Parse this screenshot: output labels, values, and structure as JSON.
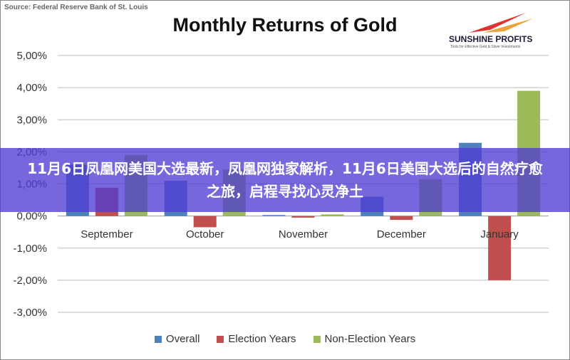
{
  "source": "Source: Federal Reserve Bank of St. Louis",
  "logo": {
    "name": "SUNSHINE PROFITS",
    "tagline": "Tools for Effective Gold & Silver Investments"
  },
  "overlay_headline": "11月6日凤凰网美国大选最新，凤凰网独家解析，11月6日美国大选后的自然疗愈之旅，启程寻找心灵净土",
  "chart_data": {
    "type": "bar",
    "title": "Monthly Returns of Gold",
    "categories": [
      "September",
      "October",
      "November",
      "December",
      "January"
    ],
    "series": [
      {
        "name": "Overall",
        "color": "#4f81bd",
        "values": [
          1.6,
          1.1,
          0.03,
          0.6,
          2.28
        ]
      },
      {
        "name": "Election Years",
        "color": "#c0504d",
        "values": [
          0.88,
          -0.35,
          -0.05,
          -0.12,
          -2.0
        ]
      },
      {
        "name": "Non-Election Years",
        "color": "#9bbb59",
        "values": [
          1.9,
          1.45,
          0.05,
          1.15,
          3.9
        ]
      }
    ],
    "ylim": [
      -3,
      5
    ],
    "yticks": [
      "5,00%",
      "4,00%",
      "3,00%",
      "2,00%",
      "1,00%",
      "0,00%",
      "-1,00%",
      "-2,00%",
      "-3,00%"
    ],
    "grid": true,
    "legend": "bottom"
  }
}
